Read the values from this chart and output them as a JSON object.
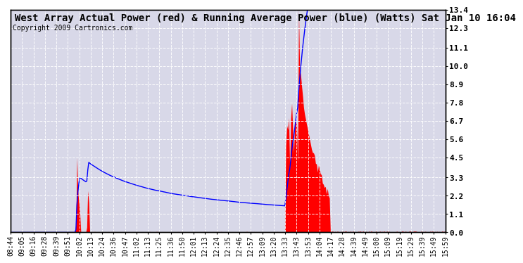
{
  "title": "West Array Actual Power (red) & Running Average Power (blue) (Watts) Sat Jan 10 16:04",
  "copyright": "Copyright 2009 Cartronics.com",
  "ylim": [
    0.0,
    13.4
  ],
  "yticks": [
    0.0,
    1.1,
    2.2,
    3.3,
    4.5,
    5.6,
    6.7,
    7.8,
    8.9,
    10.0,
    11.1,
    12.3,
    13.4
  ],
  "bg_color": "#ffffff",
  "plot_bg_color": "#d8d8e8",
  "grid_color": "#ffffff",
  "bar_color": "#ff0000",
  "line_color": "#0000ff",
  "title_fontsize": 10,
  "copyright_fontsize": 7,
  "tick_fontsize": 7,
  "x_tick_labels": [
    "08:44",
    "09:05",
    "09:16",
    "09:28",
    "09:39",
    "09:51",
    "10:02",
    "10:13",
    "10:24",
    "10:36",
    "10:47",
    "11:02",
    "11:13",
    "11:25",
    "11:36",
    "11:50",
    "12:01",
    "12:13",
    "12:24",
    "12:35",
    "12:46",
    "12:57",
    "13:09",
    "13:20",
    "13:33",
    "13:43",
    "13:53",
    "14:04",
    "14:17",
    "14:28",
    "14:39",
    "14:49",
    "15:00",
    "15:09",
    "15:19",
    "15:29",
    "15:39",
    "15:49",
    "15:59"
  ]
}
